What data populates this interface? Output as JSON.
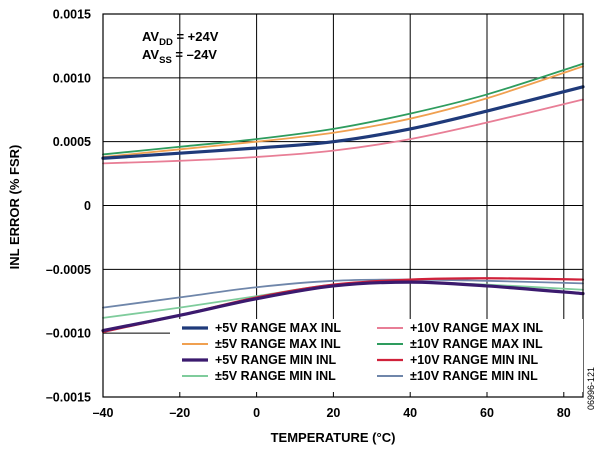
{
  "chart_data": {
    "type": "line",
    "xlabel": "TEMPERATURE (°C)",
    "ylabel": "INL ERROR (% FSR)",
    "xlim": [
      -40,
      85
    ],
    "ylim": [
      -0.0015,
      0.0015
    ],
    "xticks": [
      -40,
      -20,
      0,
      20,
      40,
      60,
      80
    ],
    "xtick_labels": [
      "–40",
      "–20",
      "0",
      "20",
      "40",
      "60",
      "80"
    ],
    "yticks": [
      0.0015,
      0.001,
      0.0005,
      0,
      -0.0005,
      -0.001,
      -0.0015
    ],
    "ytick_labels": [
      "0.0015",
      "0.0010",
      "0.0005",
      "0",
      "–0.0005",
      "–0.0010",
      "–0.0015"
    ],
    "grid": true,
    "legend_position": "bottom-right",
    "annotation": {
      "line1": {
        "main": "AV",
        "sub": "DD",
        "rest": " = +24V"
      },
      "line2": {
        "main": "AV",
        "sub": "SS",
        "rest": " = –24V"
      }
    },
    "figure_id": "06996-121",
    "x": [
      -40,
      -20,
      0,
      20,
      40,
      60,
      85
    ],
    "series": [
      {
        "name": "+5V RANGE MAX INL",
        "color": "#1f3a7a",
        "width": 3.2,
        "values": [
          0.00037,
          0.00041,
          0.00045,
          0.0005,
          0.0006,
          0.00074,
          0.00093
        ]
      },
      {
        "name": "±5V RANGE MAX INL",
        "color": "#f0a050",
        "width": 1.8,
        "values": [
          0.00038,
          0.00044,
          0.0005,
          0.00057,
          0.00068,
          0.00084,
          0.00109
        ]
      },
      {
        "name": "+5V RANGE MIN INL",
        "color": "#3b1a6e",
        "width": 3.2,
        "values": [
          -0.00098,
          -0.00086,
          -0.00073,
          -0.00063,
          -0.0006,
          -0.00063,
          -0.00069
        ]
      },
      {
        "name": "±5V RANGE MIN INL",
        "color": "#7fcc9c",
        "width": 1.8,
        "values": [
          -0.00088,
          -0.0008,
          -0.00071,
          -0.00062,
          -0.0006,
          -0.00062,
          -0.00066
        ]
      },
      {
        "name": "+10V RANGE MAX INL",
        "color": "#e87e96",
        "width": 1.8,
        "values": [
          0.00033,
          0.00035,
          0.00038,
          0.00043,
          0.00052,
          0.00065,
          0.00083
        ]
      },
      {
        "name": "±10V RANGE MAX INL",
        "color": "#2e9c5e",
        "width": 1.8,
        "values": [
          0.0004,
          0.00046,
          0.00052,
          0.0006,
          0.00072,
          0.00087,
          0.00111
        ]
      },
      {
        "name": "+10V RANGE MIN INL",
        "color": "#d0213a",
        "width": 2.2,
        "values": [
          -0.00099,
          -0.00086,
          -0.00072,
          -0.00062,
          -0.00058,
          -0.00057,
          -0.00058
        ]
      },
      {
        "name": "±10V RANGE MIN INL",
        "color": "#6f86aa",
        "width": 1.8,
        "values": [
          -0.0008,
          -0.00072,
          -0.00064,
          -0.00059,
          -0.00058,
          -0.00059,
          -0.00061
        ]
      }
    ]
  }
}
